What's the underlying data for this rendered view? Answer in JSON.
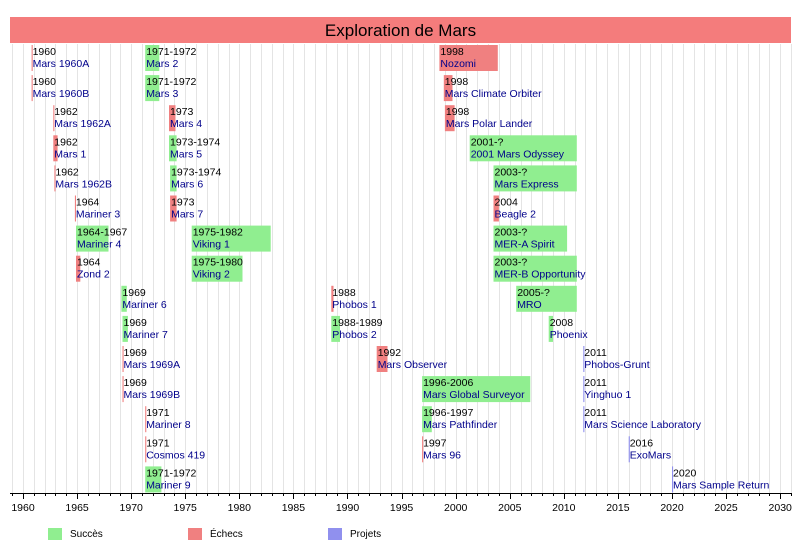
{
  "chart_data": {
    "type": "timeline",
    "title": "Exploration de Mars",
    "x_range": [
      1958.8,
      2031
    ],
    "x_ticks": [
      1960,
      1965,
      1970,
      1975,
      1980,
      1985,
      1990,
      1995,
      2000,
      2005,
      2010,
      2015,
      2020,
      2025,
      2030
    ],
    "legend_position": "bottom-left",
    "grid": "vertical",
    "categories": [
      {
        "key": "success",
        "label": "Succès",
        "color": "#90ee90"
      },
      {
        "key": "failure",
        "label": "Échecs",
        "color": "#f08080"
      },
      {
        "key": "project",
        "label": "Projets",
        "color": "#9090ee"
      }
    ],
    "missions": [
      {
        "name": "Mars 1960A",
        "dates": "1960",
        "start": 1960.8,
        "end": 1960.9,
        "row": 0,
        "status": "failure"
      },
      {
        "name": "Mars 1960B",
        "dates": "1960",
        "start": 1960.8,
        "end": 1960.9,
        "row": 1,
        "status": "failure"
      },
      {
        "name": "Mars 1962A",
        "dates": "1962",
        "start": 1962.8,
        "end": 1962.9,
        "row": 2,
        "status": "failure"
      },
      {
        "name": "Mars 1",
        "dates": "1962",
        "start": 1962.8,
        "end": 1963.2,
        "row": 3,
        "status": "failure"
      },
      {
        "name": "Mars 1962B",
        "dates": "1962",
        "start": 1962.9,
        "end": 1963.0,
        "row": 4,
        "status": "failure"
      },
      {
        "name": "Mariner 3",
        "dates": "1964",
        "start": 1964.8,
        "end": 1964.9,
        "row": 5,
        "status": "failure"
      },
      {
        "name": "Mariner 4",
        "dates": "1964-1967",
        "start": 1964.9,
        "end": 1967.9,
        "row": 6,
        "status": "success"
      },
      {
        "name": "Zond 2",
        "dates": "1964",
        "start": 1964.9,
        "end": 1965.3,
        "row": 7,
        "status": "failure"
      },
      {
        "name": "Mariner 6",
        "dates": "1969",
        "start": 1969.1,
        "end": 1969.6,
        "row": 8,
        "status": "success"
      },
      {
        "name": "Mariner 7",
        "dates": "1969",
        "start": 1969.2,
        "end": 1969.7,
        "row": 9,
        "status": "success"
      },
      {
        "name": "Mars 1969A",
        "dates": "1969",
        "start": 1969.2,
        "end": 1969.3,
        "row": 10,
        "status": "failure"
      },
      {
        "name": "Mars 1969B",
        "dates": "1969",
        "start": 1969.2,
        "end": 1969.3,
        "row": 11,
        "status": "failure"
      },
      {
        "name": "Mariner 8",
        "dates": "1971",
        "start": 1971.3,
        "end": 1971.4,
        "row": 12,
        "status": "failure"
      },
      {
        "name": "Cosmos 419",
        "dates": "1971",
        "start": 1971.3,
        "end": 1971.4,
        "row": 13,
        "status": "failure"
      },
      {
        "name": "Mariner 9",
        "dates": "1971-1972",
        "start": 1971.3,
        "end": 1972.8,
        "row": 14,
        "status": "success"
      },
      {
        "name": "Mars 2",
        "dates": "1971-1972",
        "start": 1971.3,
        "end": 1972.6,
        "row": 0,
        "status": "success"
      },
      {
        "name": "Mars 3",
        "dates": "1971-1972",
        "start": 1971.3,
        "end": 1972.6,
        "row": 1,
        "status": "success"
      },
      {
        "name": "Mars 4",
        "dates": "1973",
        "start": 1973.5,
        "end": 1974.1,
        "row": 2,
        "status": "failure"
      },
      {
        "name": "Mars 5",
        "dates": "1973-1974",
        "start": 1973.5,
        "end": 1974.2,
        "row": 3,
        "status": "success"
      },
      {
        "name": "Mars 6",
        "dates": "1973-1974",
        "start": 1973.6,
        "end": 1974.2,
        "row": 4,
        "status": "success"
      },
      {
        "name": "Mars 7",
        "dates": "1973",
        "start": 1973.6,
        "end": 1974.2,
        "row": 5,
        "status": "failure"
      },
      {
        "name": "Viking 1",
        "dates": "1975-1982",
        "start": 1975.6,
        "end": 1982.9,
        "row": 6,
        "status": "success"
      },
      {
        "name": "Viking 2",
        "dates": "1975-1980",
        "start": 1975.6,
        "end": 1980.3,
        "row": 7,
        "status": "success"
      },
      {
        "name": "Phobos 1",
        "dates": "1988",
        "start": 1988.5,
        "end": 1988.7,
        "row": 8,
        "status": "failure"
      },
      {
        "name": "Phobos 2",
        "dates": "1988-1989",
        "start": 1988.5,
        "end": 1989.3,
        "row": 9,
        "status": "success"
      },
      {
        "name": "Mars Observer",
        "dates": "1992",
        "start": 1992.7,
        "end": 1993.7,
        "row": 10,
        "status": "failure"
      },
      {
        "name": "Mars Global Surveyor",
        "dates": "1996-2006",
        "start": 1996.9,
        "end": 2006.9,
        "row": 11,
        "status": "success"
      },
      {
        "name": "Mars Pathfinder",
        "dates": "1996-1997",
        "start": 1996.9,
        "end": 1997.8,
        "row": 12,
        "status": "success"
      },
      {
        "name": "Mars 96",
        "dates": "1997",
        "start": 1996.9,
        "end": 1997.0,
        "row": 13,
        "status": "failure"
      },
      {
        "name": "Nozomi",
        "dates": "1998",
        "start": 1998.5,
        "end": 2003.9,
        "row": 0,
        "status": "failure"
      },
      {
        "name": "Mars Climate Orbiter",
        "dates": "1998",
        "start": 1998.9,
        "end": 1999.7,
        "row": 1,
        "status": "failure"
      },
      {
        "name": "Mars Polar Lander",
        "dates": "1998",
        "start": 1999.0,
        "end": 1999.9,
        "row": 2,
        "status": "failure"
      },
      {
        "name": "2001 Mars Odyssey",
        "dates": "2001-?",
        "start": 2001.3,
        "end": 2011.2,
        "row": 3,
        "status": "success"
      },
      {
        "name": "Mars Express",
        "dates": "2003-?",
        "start": 2003.5,
        "end": 2011.2,
        "row": 4,
        "status": "success"
      },
      {
        "name": "Beagle 2",
        "dates": "2004",
        "start": 2003.5,
        "end": 2004.0,
        "row": 5,
        "status": "failure"
      },
      {
        "name": "MER-A Spirit",
        "dates": "2003-?",
        "start": 2003.5,
        "end": 2010.3,
        "row": 6,
        "status": "success"
      },
      {
        "name": "MER-B Opportunity",
        "dates": "2003-?",
        "start": 2003.5,
        "end": 2011.2,
        "row": 7,
        "status": "success"
      },
      {
        "name": "MRO",
        "dates": "2005-?",
        "start": 2005.6,
        "end": 2011.2,
        "row": 8,
        "status": "success"
      },
      {
        "name": "Phoenix",
        "dates": "2008",
        "start": 2008.6,
        "end": 2009.0,
        "row": 9,
        "status": "success"
      },
      {
        "name": "Phobos-Grunt",
        "dates": "2011",
        "start": 2011.8,
        "end": 2011.9,
        "row": 10,
        "status": "project"
      },
      {
        "name": "Yinghuo 1",
        "dates": "2011",
        "start": 2011.8,
        "end": 2011.9,
        "row": 11,
        "status": "project"
      },
      {
        "name": "Mars Science Laboratory",
        "dates": "2011",
        "start": 2011.8,
        "end": 2011.9,
        "row": 12,
        "status": "project"
      },
      {
        "name": "ExoMars",
        "dates": "2016",
        "start": 2016.0,
        "end": 2016.1,
        "row": 13,
        "status": "project"
      },
      {
        "name": "Mars Sample Return",
        "dates": "2020",
        "start": 2020.0,
        "end": 2020.1,
        "row": 14,
        "status": "project"
      }
    ]
  },
  "colors": {
    "title_bar": "#f47c7c",
    "grid": "#e4e4e4",
    "axis": "#000000",
    "mission_name": "#00008b",
    "dates_text": "#000000"
  }
}
